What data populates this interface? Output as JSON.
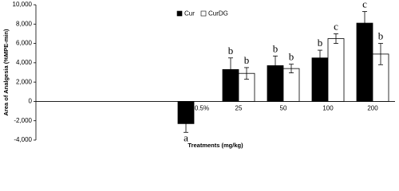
{
  "chart_data": {
    "type": "bar",
    "x_label": "Treatments (mg/kg)",
    "y_label": "Area of Analgesia (%MPE-min)",
    "categories": [
      "0.5%",
      "25",
      "50",
      "100",
      "200"
    ],
    "series": [
      {
        "name": "Cur",
        "color": "#000000",
        "values": [
          -2300,
          3300,
          3700,
          4500,
          8100
        ],
        "errors": [
          900,
          1200,
          1000,
          800,
          1200
        ],
        "letters": [
          "a",
          "b",
          "b",
          "b",
          "c"
        ]
      },
      {
        "name": "CurDG",
        "color": "#ffffff",
        "values": [
          null,
          2900,
          3400,
          6500,
          4900
        ],
        "errors": [
          null,
          600,
          450,
          500,
          1100
        ],
        "letters": [
          null,
          "b",
          "b",
          "c",
          "b"
        ]
      }
    ],
    "ylim": [
      -4000,
      10000
    ],
    "yticks": [
      {
        "value": -4000,
        "label": "-4,000"
      },
      {
        "value": -2000,
        "label": "-2,000"
      },
      0,
      {
        "value": 2000,
        "label": "2,000"
      },
      {
        "value": 4000,
        "label": "4,000"
      },
      {
        "value": 6000,
        "label": "6,000"
      },
      {
        "value": 8000,
        "label": "8,000"
      },
      {
        "value": 10000,
        "label": "10,000"
      }
    ],
    "legend": "top"
  }
}
